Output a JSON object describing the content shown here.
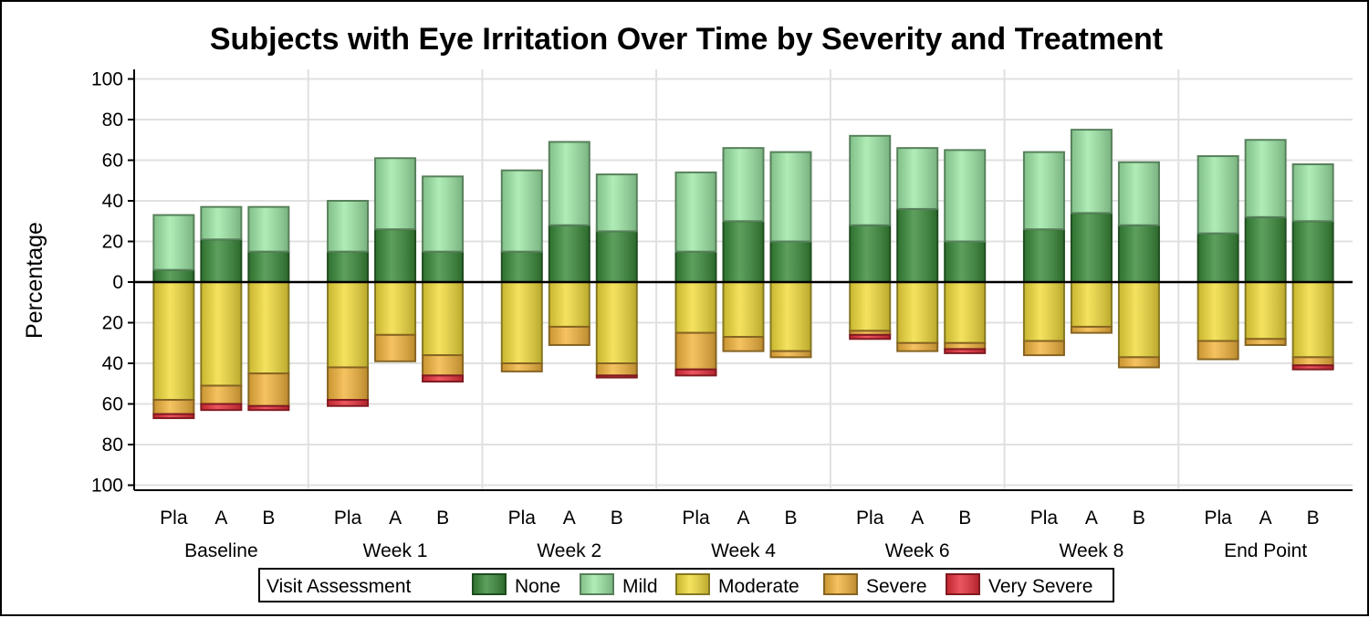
{
  "chart_data": {
    "type": "bar",
    "title": "Subjects with Eye Irritation Over Time by Severity and Treatment",
    "ylabel": "Percentage",
    "ylim": [
      -100,
      100
    ],
    "y_ticks": [
      100,
      80,
      60,
      40,
      20,
      0,
      20,
      40,
      60,
      80,
      100
    ],
    "grid": true,
    "visits": [
      "Baseline",
      "Week 1",
      "Week 2",
      "Week 4",
      "Week 6",
      "Week 8",
      "End Point"
    ],
    "treatments": [
      "Pla",
      "A",
      "B"
    ],
    "legend": {
      "title": "Visit Assessment",
      "placement": "bottom",
      "items": [
        {
          "name": "None",
          "color": "#3a8a3a"
        },
        {
          "name": "Mild",
          "color": "#9ee8a6"
        },
        {
          "name": "Moderate",
          "color": "#f2dc3c"
        },
        {
          "name": "Severe",
          "color": "#f3b53e"
        },
        {
          "name": "Very Severe",
          "color": "#e8303c"
        }
      ]
    },
    "series": [
      {
        "name": "None",
        "direction": "up",
        "values": [
          [
            6,
            21,
            15
          ],
          [
            15,
            26,
            15
          ],
          [
            15,
            28,
            25
          ],
          [
            15,
            30,
            20
          ],
          [
            28,
            36,
            20
          ],
          [
            26,
            34,
            28
          ],
          [
            24,
            32,
            30
          ]
        ]
      },
      {
        "name": "Mild",
        "direction": "up",
        "values": [
          [
            27,
            16,
            22
          ],
          [
            25,
            35,
            37
          ],
          [
            40,
            41,
            28
          ],
          [
            39,
            36,
            44
          ],
          [
            44,
            30,
            45
          ],
          [
            38,
            41,
            31
          ],
          [
            38,
            38,
            28
          ]
        ]
      },
      {
        "name": "Moderate",
        "direction": "down",
        "values": [
          [
            58,
            51,
            45
          ],
          [
            42,
            26,
            36
          ],
          [
            40,
            22,
            40
          ],
          [
            25,
            27,
            34
          ],
          [
            24,
            30,
            30
          ],
          [
            29,
            22,
            37
          ],
          [
            29,
            28,
            37
          ]
        ]
      },
      {
        "name": "Severe",
        "direction": "down",
        "values": [
          [
            7,
            9,
            16
          ],
          [
            16,
            13,
            10
          ],
          [
            4,
            9,
            6
          ],
          [
            18,
            7,
            3
          ],
          [
            2,
            4,
            3
          ],
          [
            7,
            3,
            5
          ],
          [
            9,
            3,
            4
          ]
        ]
      },
      {
        "name": "Very Severe",
        "direction": "down",
        "values": [
          [
            2,
            3,
            2
          ],
          [
            3,
            0,
            3
          ],
          [
            0,
            0,
            1
          ],
          [
            3,
            0,
            0
          ],
          [
            2,
            0,
            2
          ],
          [
            0,
            0,
            0
          ],
          [
            0,
            0,
            2
          ]
        ]
      }
    ]
  }
}
